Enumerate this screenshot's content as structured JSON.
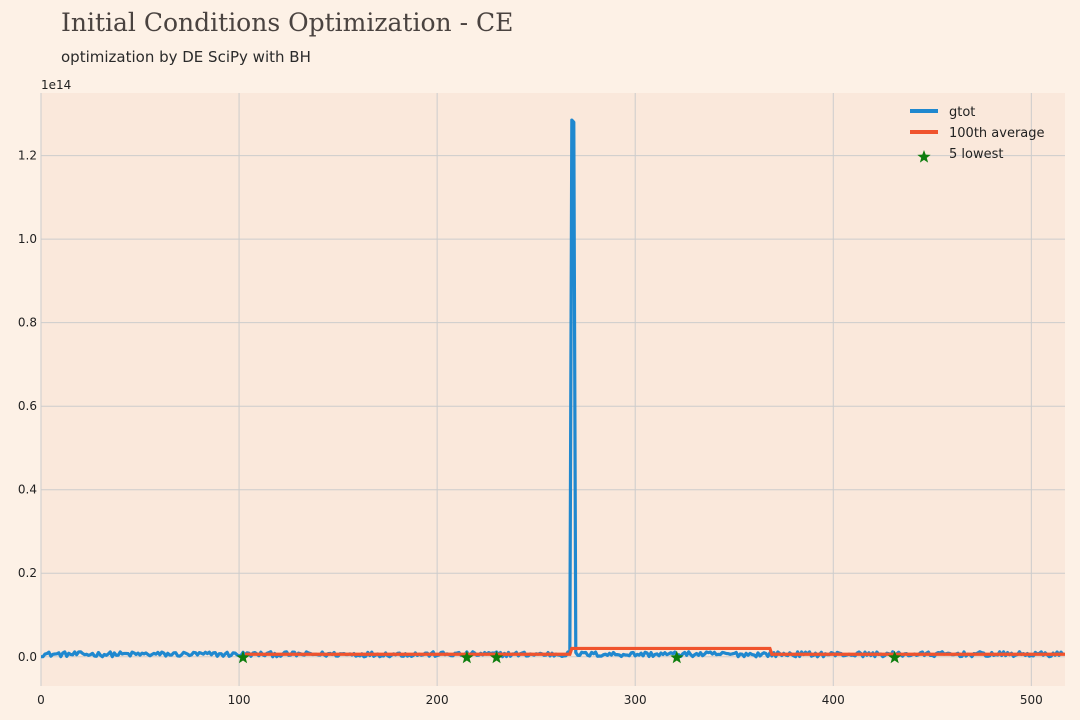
{
  "chart_data": {
    "type": "line",
    "title": "Initial Conditions Optimization - CE",
    "subtitle": "optimization by DE SciPy with BH",
    "xlabel": "",
    "ylabel": "",
    "y_offset_label": "1e14",
    "xlim": [
      0,
      517
    ],
    "ylim": [
      -0.07,
      1.35
    ],
    "x_ticks": [
      0,
      100,
      200,
      300,
      400,
      500
    ],
    "y_ticks": [
      0.0,
      0.2,
      0.4,
      0.6,
      0.8,
      1.0,
      1.2
    ],
    "y_tick_labels": [
      "0.0",
      "0.2",
      "0.4",
      "0.6",
      "0.8",
      "1.0",
      "1.2"
    ],
    "grid": true,
    "legend_position": "top-right",
    "series": [
      {
        "name": "gtot",
        "color": "#1f88cf",
        "kind": "line",
        "baseline": 0.006,
        "noise": 0.006,
        "n_points": 517,
        "spike": {
          "x": [
            267,
            268,
            269,
            270
          ],
          "y": [
            0.01,
            1.285,
            1.28,
            0.01
          ]
        }
      },
      {
        "name": "100th average",
        "color": "#f0532d",
        "kind": "step",
        "x": [
          103,
          267,
          268,
          368,
          369,
          517
        ],
        "y": [
          0.006,
          0.006,
          0.02,
          0.02,
          0.006,
          0.006
        ]
      },
      {
        "name": "5 lowest",
        "color": "#0e7d0e",
        "kind": "scatter",
        "marker": "star",
        "x": [
          102,
          215,
          230,
          321,
          431
        ],
        "y": [
          -0.002,
          -0.002,
          -0.002,
          -0.002,
          -0.002
        ]
      }
    ]
  }
}
